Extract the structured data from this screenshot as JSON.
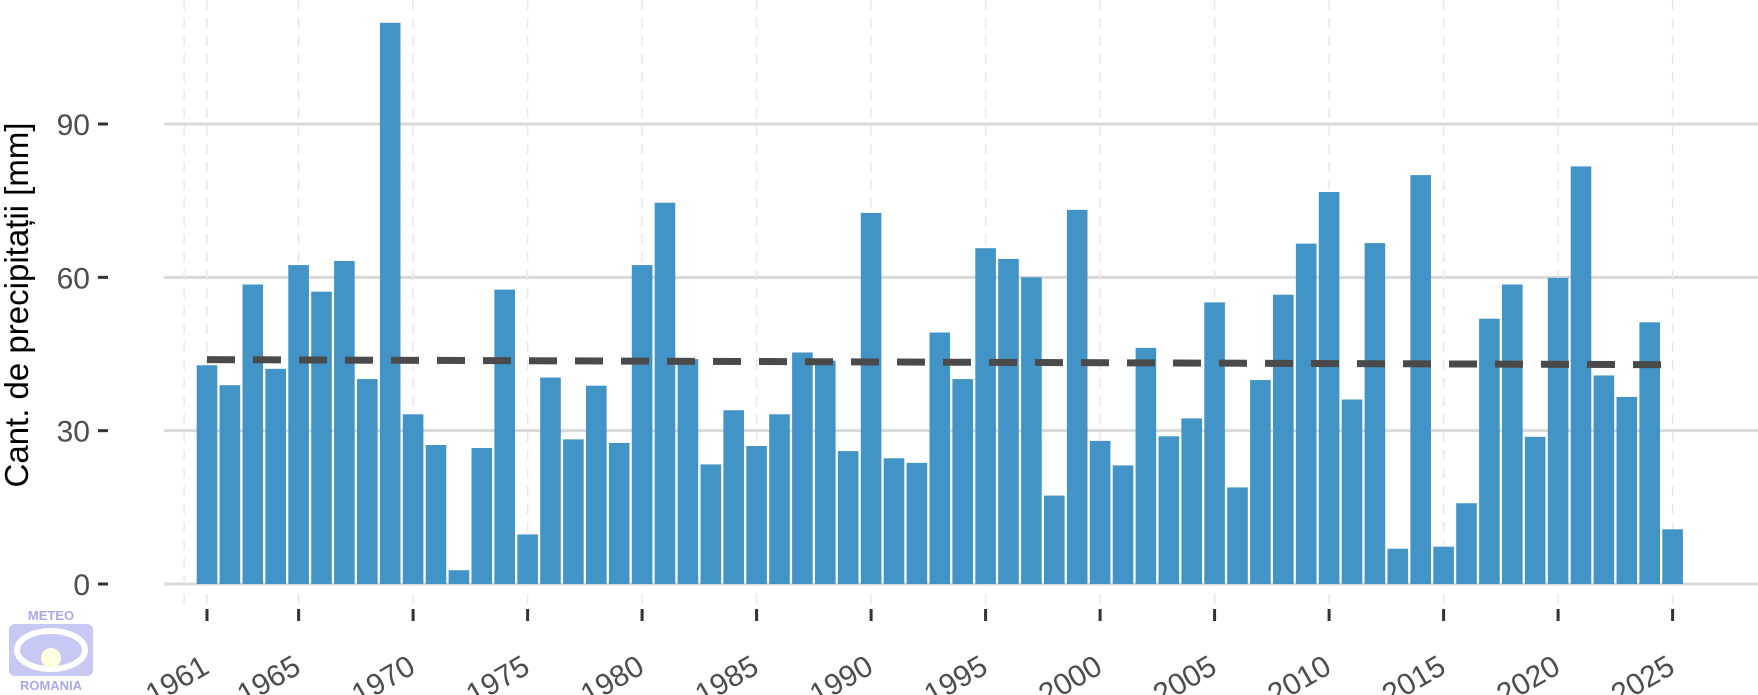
{
  "chart_data": {
    "type": "bar",
    "title": "",
    "xlabel": "",
    "ylabel": "Cant. de precipitații [mm]",
    "ylim": [
      0,
      110
    ],
    "yticks": [
      0,
      30,
      60,
      90
    ],
    "xticks": [
      1961,
      1965,
      1970,
      1975,
      1980,
      1985,
      1990,
      1995,
      2000,
      2005,
      2010,
      2015,
      2020,
      2025
    ],
    "grid": true,
    "legend": "none",
    "bar_color": "#4394c6",
    "trend_color": "#4a4a4a",
    "x": [
      1961,
      1962,
      1963,
      1964,
      1965,
      1966,
      1967,
      1968,
      1969,
      1970,
      1971,
      1972,
      1973,
      1974,
      1975,
      1976,
      1977,
      1978,
      1979,
      1980,
      1981,
      1982,
      1983,
      1984,
      1985,
      1986,
      1987,
      1988,
      1989,
      1990,
      1991,
      1992,
      1993,
      1994,
      1995,
      1996,
      1997,
      1998,
      1999,
      2000,
      2001,
      2002,
      2003,
      2004,
      2005,
      2006,
      2007,
      2008,
      2009,
      2010,
      2011,
      2012,
      2013,
      2014,
      2015,
      2016,
      2017,
      2018,
      2019,
      2020,
      2021,
      2022,
      2023,
      2024,
      2025
    ],
    "values": [
      42.8,
      38.9,
      58.6,
      42.1,
      62.4,
      57.2,
      63.2,
      40.1,
      109.8,
      33.2,
      27.2,
      2.7,
      26.6,
      57.6,
      9.7,
      40.4,
      28.3,
      38.8,
      27.6,
      62.4,
      74.6,
      44.0,
      23.4,
      34.0,
      27.0,
      33.2,
      45.3,
      43.7,
      26.0,
      72.6,
      24.6,
      23.7,
      49.2,
      40.1,
      65.7,
      63.6,
      60.0,
      17.3,
      73.2,
      28.0,
      23.2,
      46.2,
      28.9,
      32.4,
      55.1,
      18.9,
      39.9,
      56.6,
      66.6,
      76.7,
      36.1,
      66.7,
      6.9,
      80.0,
      7.3,
      15.8,
      51.9,
      58.6,
      28.8,
      59.9,
      81.7,
      40.8,
      36.6,
      51.2,
      10.7
    ],
    "trend": {
      "x": [
        1961,
        2025
      ],
      "y": [
        43.9,
        42.9
      ]
    }
  },
  "logo": {
    "top_text": "METEO",
    "bottom_text": "ROMANIA"
  }
}
